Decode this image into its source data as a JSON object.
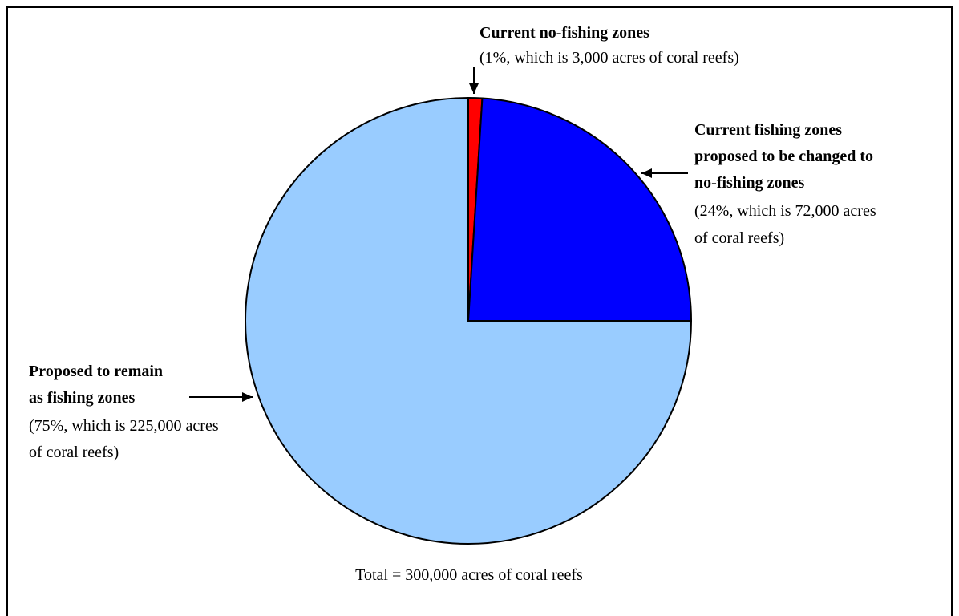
{
  "chart_data": {
    "type": "pie",
    "title": "",
    "total_label": "Total = 300,000 acres of coral reefs",
    "slices": [
      {
        "name": "Current no-fishing zones",
        "percent": 1,
        "acres": 3000,
        "color": "#ff0000",
        "label_lines_bold": [
          "Current no-fishing zones"
        ],
        "label_lines_regular": [
          "(1%, which is 3,000 acres of coral reefs)"
        ]
      },
      {
        "name": "Current fishing zones proposed to be changed to no-fishing zones",
        "percent": 24,
        "acres": 72000,
        "color": "#0000ff",
        "label_lines_bold": [
          "Current fishing zones",
          "proposed to be changed to",
          "no-fishing zones"
        ],
        "label_lines_regular": [
          "(24%, which is 72,000 acres",
          "of coral reefs)"
        ]
      },
      {
        "name": "Proposed to remain as fishing zones",
        "percent": 75,
        "acres": 225000,
        "color": "#99ccff",
        "label_lines_bold": [
          "Proposed to remain",
          "as fishing zones"
        ],
        "label_lines_regular": [
          "(75%, which is 225,000 acres",
          "of coral reefs)"
        ]
      }
    ]
  }
}
